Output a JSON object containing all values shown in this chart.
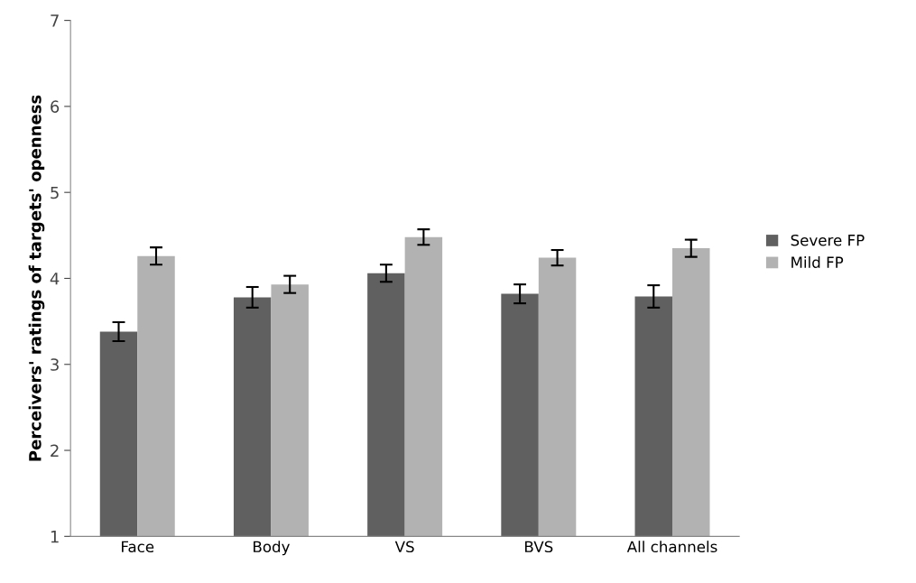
{
  "chart_data": {
    "type": "bar",
    "ylabel": "Perceivers' ratings of targets' openness",
    "categories": [
      "Face",
      "Body",
      "VS",
      "BVS",
      "All channels"
    ],
    "series": [
      {
        "name": "Severe FP",
        "color": "#606060",
        "values": [
          3.38,
          3.78,
          4.06,
          3.82,
          3.79
        ],
        "errors": [
          0.11,
          0.12,
          0.1,
          0.11,
          0.13
        ]
      },
      {
        "name": "Mild FP",
        "color": "#b2b2b2",
        "values": [
          4.26,
          3.93,
          4.48,
          4.24,
          4.35
        ],
        "errors": [
          0.1,
          0.1,
          0.09,
          0.09,
          0.1
        ]
      }
    ],
    "ylim": [
      1,
      7
    ],
    "yticks": [
      1,
      2,
      3,
      4,
      5,
      6,
      7
    ],
    "grid": false,
    "legend": "right"
  }
}
